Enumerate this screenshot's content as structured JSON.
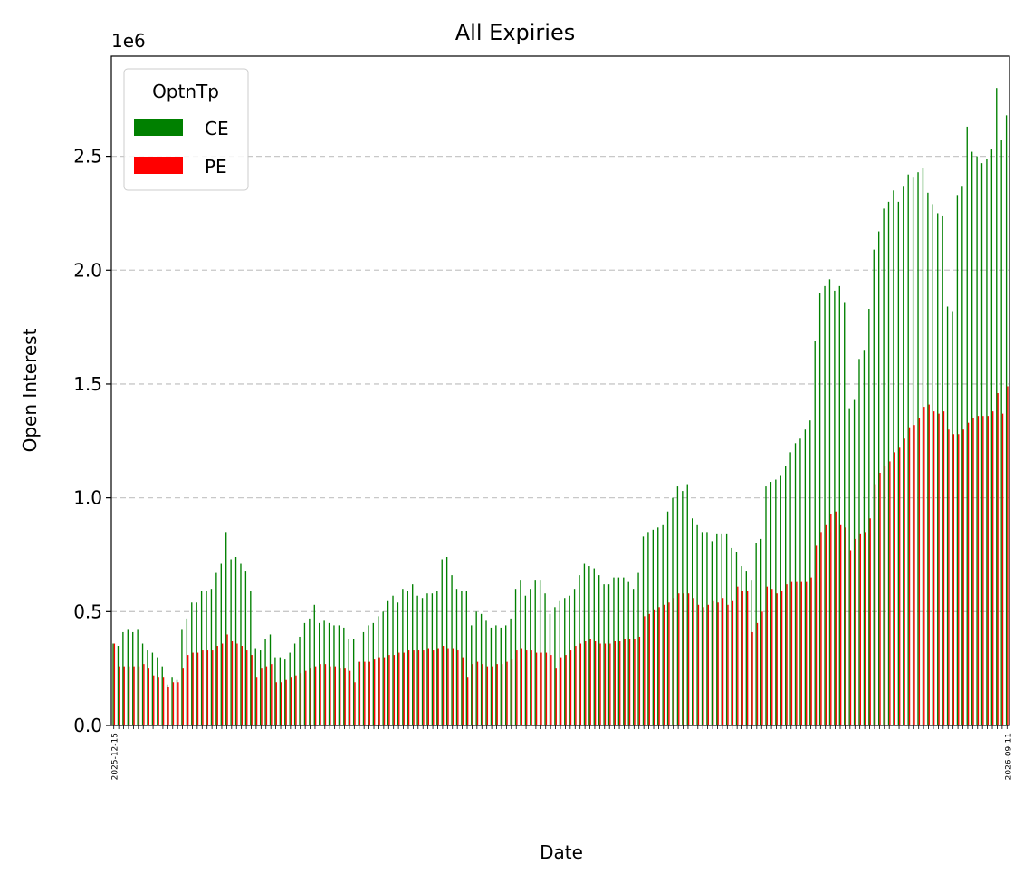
{
  "chart_data": {
    "type": "bar",
    "title": "All Expiries",
    "xlabel": "Date",
    "ylabel": "Open Interest",
    "scale_label": "1e6",
    "ylim": [
      0,
      2.94
    ],
    "yticks": [
      "0.0",
      "0.5",
      "1.0",
      "1.5",
      "2.0",
      "2.5"
    ],
    "ytick_values": [
      0,
      0.5,
      1.0,
      1.5,
      2.0,
      2.5
    ],
    "grid": "horizontal dashed",
    "legend_position": "top-left",
    "legend_title": "OptnTp",
    "first_date_label": "2025-12-15",
    "last_date_label": "2026-09-11",
    "colors": {
      "CE": "#008000",
      "PE": "#ff0000"
    },
    "series": [
      {
        "name": "CE",
        "values": [
          0.36,
          0.35,
          0.41,
          0.42,
          0.41,
          0.42,
          0.36,
          0.33,
          0.32,
          0.3,
          0.26,
          0.18,
          0.21,
          0.2,
          0.42,
          0.47,
          0.54,
          0.54,
          0.59,
          0.59,
          0.6,
          0.67,
          0.71,
          0.85,
          0.73,
          0.74,
          0.71,
          0.68,
          0.59,
          0.34,
          0.33,
          0.38,
          0.4,
          0.3,
          0.3,
          0.29,
          0.32,
          0.36,
          0.39,
          0.45,
          0.47,
          0.53,
          0.45,
          0.46,
          0.45,
          0.44,
          0.44,
          0.43,
          0.38,
          0.38,
          0.28,
          0.41,
          0.44,
          0.45,
          0.48,
          0.5,
          0.55,
          0.57,
          0.54,
          0.6,
          0.59,
          0.62,
          0.57,
          0.56,
          0.58,
          0.58,
          0.59,
          0.73,
          0.74,
          0.66,
          0.6,
          0.59,
          0.59,
          0.44,
          0.5,
          0.49,
          0.46,
          0.43,
          0.44,
          0.43,
          0.44,
          0.47,
          0.6,
          0.64,
          0.57,
          0.6,
          0.64,
          0.64,
          0.58,
          0.49,
          0.52,
          0.55,
          0.56,
          0.57,
          0.6,
          0.66,
          0.71,
          0.7,
          0.69,
          0.66,
          0.62,
          0.62,
          0.65,
          0.65,
          0.65,
          0.63,
          0.6,
          0.67,
          0.83,
          0.85,
          0.86,
          0.87,
          0.88,
          0.94,
          1.0,
          1.05,
          1.03,
          1.06,
          0.91,
          0.88,
          0.85,
          0.85,
          0.81,
          0.84,
          0.84,
          0.84,
          0.78,
          0.76,
          0.7,
          0.68,
          0.64,
          0.8,
          0.82,
          1.05,
          1.07,
          1.08,
          1.1,
          1.14,
          1.2,
          1.24,
          1.26,
          1.3,
          1.34,
          1.69,
          1.9,
          1.93,
          1.96,
          1.91,
          1.93,
          1.86,
          1.39,
          1.43,
          1.61,
          1.65,
          1.83,
          2.09,
          2.17,
          2.27,
          2.3,
          2.35,
          2.3,
          2.37,
          2.42,
          2.41,
          2.43,
          2.45,
          2.34,
          2.29,
          2.25,
          2.24,
          1.84,
          1.82,
          2.33,
          2.37,
          2.63,
          2.52,
          2.5,
          2.47,
          2.49,
          2.53,
          2.8,
          2.57,
          2.68
        ]
      },
      {
        "name": "PE",
        "values": [
          0.36,
          0.26,
          0.26,
          0.26,
          0.26,
          0.26,
          0.27,
          0.25,
          0.22,
          0.21,
          0.21,
          0.17,
          0.19,
          0.19,
          0.25,
          0.31,
          0.32,
          0.32,
          0.33,
          0.33,
          0.33,
          0.35,
          0.36,
          0.4,
          0.37,
          0.36,
          0.35,
          0.33,
          0.31,
          0.21,
          0.25,
          0.26,
          0.27,
          0.19,
          0.19,
          0.2,
          0.21,
          0.22,
          0.23,
          0.24,
          0.25,
          0.26,
          0.27,
          0.27,
          0.26,
          0.26,
          0.25,
          0.25,
          0.24,
          0.19,
          0.28,
          0.28,
          0.28,
          0.29,
          0.3,
          0.3,
          0.31,
          0.31,
          0.32,
          0.32,
          0.33,
          0.33,
          0.33,
          0.33,
          0.34,
          0.33,
          0.34,
          0.35,
          0.34,
          0.34,
          0.33,
          0.3,
          0.21,
          0.27,
          0.28,
          0.27,
          0.26,
          0.26,
          0.27,
          0.27,
          0.28,
          0.29,
          0.33,
          0.34,
          0.33,
          0.33,
          0.32,
          0.32,
          0.32,
          0.31,
          0.25,
          0.3,
          0.31,
          0.33,
          0.35,
          0.36,
          0.37,
          0.38,
          0.37,
          0.36,
          0.36,
          0.36,
          0.37,
          0.37,
          0.38,
          0.38,
          0.38,
          0.39,
          0.48,
          0.49,
          0.51,
          0.52,
          0.53,
          0.54,
          0.56,
          0.58,
          0.58,
          0.58,
          0.56,
          0.53,
          0.52,
          0.53,
          0.55,
          0.54,
          0.56,
          0.53,
          0.55,
          0.61,
          0.59,
          0.59,
          0.41,
          0.45,
          0.5,
          0.61,
          0.6,
          0.58,
          0.59,
          0.62,
          0.63,
          0.63,
          0.63,
          0.63,
          0.65,
          0.79,
          0.85,
          0.88,
          0.93,
          0.94,
          0.88,
          0.87,
          0.77,
          0.82,
          0.84,
          0.85,
          0.91,
          1.06,
          1.11,
          1.14,
          1.16,
          1.2,
          1.22,
          1.26,
          1.31,
          1.32,
          1.35,
          1.4,
          1.41,
          1.38,
          1.37,
          1.38,
          1.3,
          1.28,
          1.28,
          1.3,
          1.33,
          1.35,
          1.36,
          1.36,
          1.36,
          1.38,
          1.46,
          1.37,
          1.49
        ]
      }
    ]
  }
}
